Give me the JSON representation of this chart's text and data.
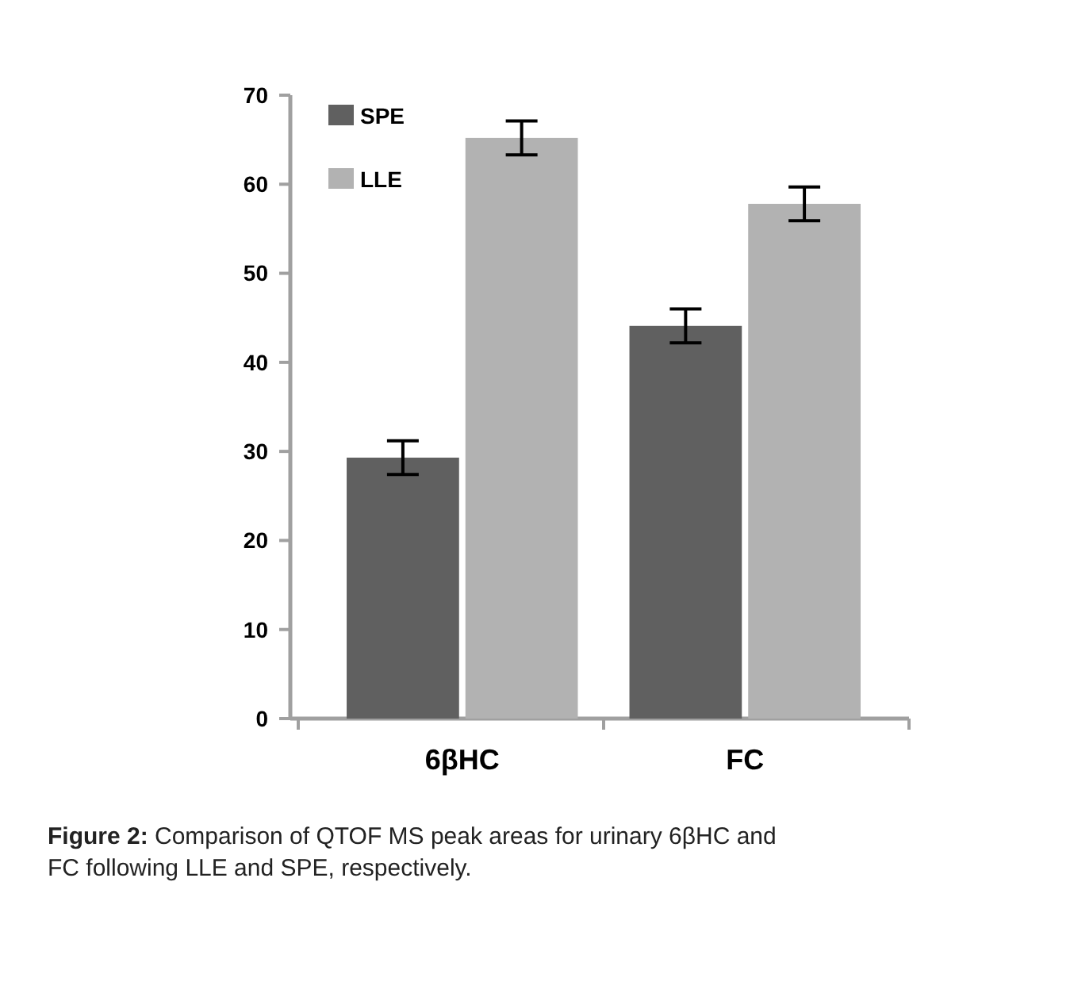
{
  "chart_data": {
    "type": "bar",
    "categories": [
      "6βHC",
      "FC"
    ],
    "series": [
      {
        "name": "SPE",
        "color": "#606060",
        "values": [
          29.3,
          44.1
        ],
        "errors": [
          1.9,
          1.9
        ]
      },
      {
        "name": "LLE",
        "color": "#b2b2b2",
        "values": [
          65.2,
          57.8
        ],
        "errors": [
          1.9,
          1.9
        ]
      }
    ],
    "ylim": [
      0,
      70
    ],
    "yticks": [
      0,
      10,
      20,
      30,
      40,
      50,
      60,
      70
    ],
    "legend": "top left",
    "annotations": [
      "Figure 2: Comparison of QTOF MS peak areas for urinary 6βHC and FC following LLE and SPE, respectively."
    ]
  }
}
